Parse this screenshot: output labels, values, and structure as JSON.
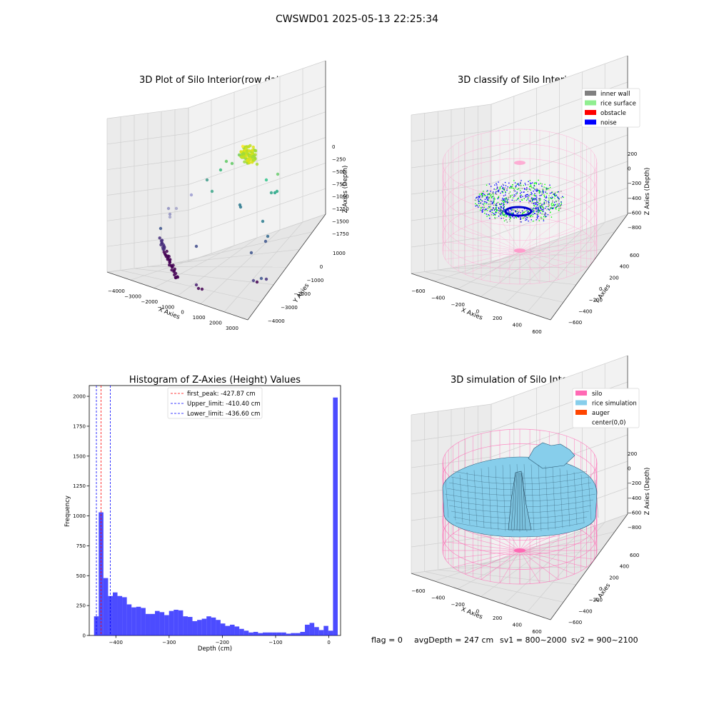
{
  "figure": {
    "suptitle": "CWSWD01 2025-05-13 22:25:34",
    "footer": {
      "flag": "flag = 0",
      "avg_depth": "avgDepth = 247 cm",
      "sv1": "sv1 = 800~2000",
      "sv2": "sv2 = 900~2100"
    }
  },
  "panel_raw": {
    "title": "3D Plot of Silo Interior(row data)",
    "xlabel": "X Axies",
    "ylabel": "Y Axies",
    "zlabel": "Z Axies (Depth)",
    "x_ticks": [
      "−4000",
      "−3000",
      "−2000",
      "−1000",
      "0",
      "1000",
      "2000",
      "3000"
    ],
    "y_ticks": [
      "−4000",
      "−3000",
      "−2000",
      "−1000",
      "0",
      "1000"
    ],
    "z_ticks": [
      "0",
      "−250",
      "−500",
      "−750",
      "−1000",
      "−1250",
      "−1500",
      "−1750"
    ]
  },
  "panel_classify": {
    "title": "3D classify of Silo Interior",
    "xlabel": "X Axies",
    "ylabel": "Y Axies",
    "zlabel": "Z Axies (Depth)",
    "x_ticks": [
      "−600",
      "−400",
      "−200",
      "0",
      "200",
      "400",
      "600"
    ],
    "y_ticks": [
      "−600",
      "−400",
      "−200",
      "0",
      "200",
      "400",
      "600"
    ],
    "z_ticks": [
      "200",
      "0",
      "−200",
      "−400",
      "−600",
      "−800"
    ],
    "legend": [
      {
        "label": "inner wall",
        "color": "#808080"
      },
      {
        "label": "rice surface",
        "color": "#90ee90"
      },
      {
        "label": "obstacle",
        "color": "#ff0000"
      },
      {
        "label": "noise",
        "color": "#0000ff"
      }
    ]
  },
  "panel_sim": {
    "title": "3D simulation of Silo Interior",
    "xlabel": "X Axies",
    "ylabel": "Y Axies",
    "zlabel": "Z Axies (Depth)",
    "x_ticks": [
      "−600",
      "−400",
      "−200",
      "0",
      "200",
      "400",
      "600"
    ],
    "y_ticks": [
      "−600",
      "−400",
      "−200",
      "0",
      "200",
      "400",
      "600"
    ],
    "z_ticks": [
      "200",
      "0",
      "−200",
      "−400",
      "−600",
      "−800"
    ],
    "legend": [
      {
        "label": "silo",
        "color": "#ff69b4"
      },
      {
        "label": "rice simulation",
        "color": "#87ceeb"
      },
      {
        "label": "auger",
        "color": "#ff4500"
      },
      {
        "label": "center(0,0)",
        "color": "#ffffff"
      }
    ]
  },
  "chart_data": [
    {
      "type": "scatter",
      "title": "3D Plot of Silo Interior(row data)",
      "xlabel": "X Axies",
      "ylabel": "Y Axies",
      "zlabel": "Z Axies (Depth)",
      "xlim": [
        -4500,
        3500
      ],
      "ylim": [
        -4500,
        1000
      ],
      "zlim": [
        -2000,
        100
      ],
      "colormap": "viridis (by depth)",
      "grid": true
    },
    {
      "type": "scatter",
      "title": "3D classify of Silo Interior",
      "xlabel": "X Axies",
      "ylabel": "Y Axies",
      "zlabel": "Z Axies (Depth)",
      "xlim": [
        -650,
        650
      ],
      "ylim": [
        -650,
        650
      ],
      "zlim": [
        -950,
        300
      ],
      "series": [
        {
          "name": "inner wall",
          "color": "#808080"
        },
        {
          "name": "rice surface",
          "color": "#90ee90"
        },
        {
          "name": "obstacle",
          "color": "#ff0000"
        },
        {
          "name": "noise",
          "color": "#0000ff"
        }
      ],
      "legend_position": "top-right",
      "grid": true
    },
    {
      "type": "histogram",
      "title": "Histogram of Z-Axies (Height) Values",
      "xlabel": "Depth (cm)",
      "ylabel": "Frequency",
      "xlim": [
        -450,
        22
      ],
      "ylim": [
        0,
        2090
      ],
      "x_ticks": [
        -400,
        -300,
        -200,
        -100,
        0
      ],
      "y_ticks": [
        0,
        250,
        500,
        750,
        1000,
        1250,
        1500,
        1750,
        2000
      ],
      "bar_color": "#0000ff",
      "bin_start": -441,
      "bin_width": 8.8,
      "counts": [
        160,
        1030,
        480,
        330,
        360,
        330,
        320,
        260,
        235,
        240,
        230,
        180,
        180,
        205,
        195,
        170,
        205,
        215,
        210,
        160,
        155,
        120,
        130,
        140,
        160,
        150,
        130,
        100,
        80,
        90,
        75,
        55,
        40,
        25,
        30,
        20,
        25,
        25,
        25,
        25,
        25,
        15,
        20,
        20,
        30,
        90,
        105,
        70,
        45,
        80,
        40,
        1990
      ],
      "vlines": [
        {
          "label": "first_peak: -427.87 cm",
          "x": -427.87,
          "color": "#ff0000"
        },
        {
          "label": "Upper_limit: -410.40 cm",
          "x": -410.4,
          "color": "#0000ff"
        },
        {
          "label": "Lower_limit: -436.60 cm",
          "x": -436.6,
          "color": "#0000ff"
        }
      ],
      "legend_position": "upper center"
    },
    {
      "type": "surface",
      "title": "3D simulation of Silo Interior",
      "xlabel": "X Axies",
      "ylabel": "Y Axies",
      "zlabel": "Z Axies (Depth)",
      "xlim": [
        -650,
        650
      ],
      "ylim": [
        -650,
        650
      ],
      "zlim": [
        -950,
        300
      ],
      "series": [
        {
          "name": "silo",
          "color": "#ff69b4"
        },
        {
          "name": "rice simulation",
          "color": "#87ceeb"
        },
        {
          "name": "auger",
          "color": "#ff4500"
        },
        {
          "name": "center(0,0)",
          "color": "#ffffff"
        }
      ],
      "legend_position": "top-right",
      "grid": true
    }
  ]
}
